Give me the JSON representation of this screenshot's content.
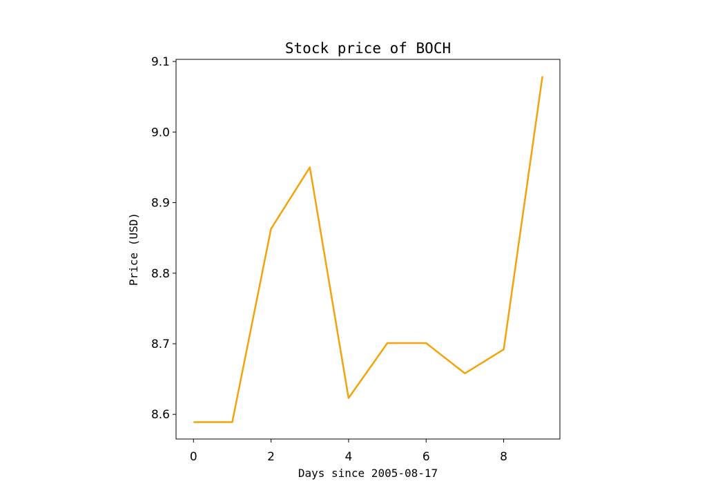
{
  "chart_data": {
    "type": "line",
    "title": "Stock price of BOCH",
    "xlabel": "Days since 2005-08-17",
    "ylabel": "Price (USD)",
    "x": [
      0,
      1,
      2,
      3,
      4,
      5,
      6,
      7,
      8,
      9
    ],
    "series": [
      {
        "values": [
          8.589,
          8.589,
          8.863,
          8.95,
          8.623,
          8.701,
          8.701,
          8.658,
          8.692,
          9.079
        ],
        "color": "#f5a20a"
      }
    ],
    "xlim": [
      -0.45,
      9.45
    ],
    "ylim": [
      8.565,
      9.103
    ],
    "xticks": [
      0,
      2,
      4,
      6,
      8
    ],
    "xtick_labels": [
      "0",
      "2",
      "4",
      "6",
      "8"
    ],
    "yticks": [
      8.6,
      8.7,
      8.8,
      8.9,
      9.0,
      9.1
    ],
    "ytick_labels": [
      "8.6",
      "8.7",
      "8.8",
      "8.9",
      "9.0",
      "9.1"
    ],
    "grid": false,
    "legend": "none"
  }
}
